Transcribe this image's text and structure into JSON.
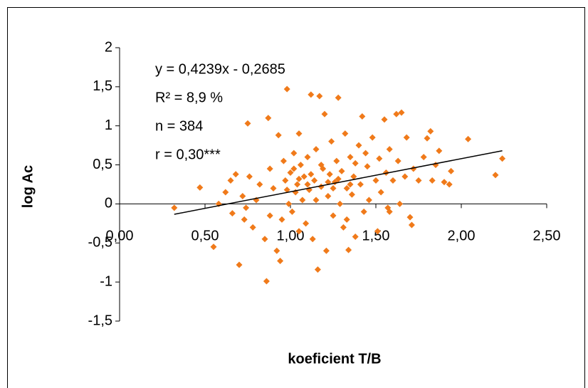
{
  "chart_data": {
    "type": "scatter",
    "x_label": "koeficient T/B",
    "y_label": "log Ac",
    "annotations": [
      "y = 0,4239x - 0,2685",
      "R² = 8,9 %",
      "n = 384",
      "r = 0,30***"
    ],
    "color": "#f07a1a",
    "xlim": [
      0,
      2.5
    ],
    "ylim": [
      -1.5,
      2
    ],
    "xticks": [
      {
        "value": 0,
        "label": "0,00"
      },
      {
        "value": 0.5,
        "label": "0,50"
      },
      {
        "value": 1,
        "label": "1,00"
      },
      {
        "value": 1.5,
        "label": "1,50"
      },
      {
        "value": 2,
        "label": "2,00"
      },
      {
        "value": 2.5,
        "label": "2,50"
      }
    ],
    "yticks": [
      {
        "value": -1.5,
        "label": "-1,5"
      },
      -1,
      {
        "value": -0.5,
        "label": "-0,5"
      },
      0,
      {
        "value": 0.5,
        "label": "0,5"
      },
      1,
      {
        "value": 1.5,
        "label": "1,5"
      },
      2
    ],
    "trendline": {
      "slope": 0.4239,
      "intercept": -0.2685,
      "x": [
        0.32,
        2.24
      ]
    },
    "x": [
      0.32,
      0.47,
      0.55,
      0.62,
      0.65,
      0.68,
      0.7,
      0.72,
      0.73,
      0.75,
      0.76,
      0.78,
      0.8,
      0.82,
      0.85,
      0.86,
      0.87,
      0.88,
      0.9,
      0.92,
      0.93,
      0.95,
      0.96,
      0.97,
      0.98,
      0.99,
      1.0,
      1.01,
      1.02,
      1.03,
      1.04,
      1.05,
      1.06,
      1.07,
      1.08,
      1.09,
      1.1,
      1.11,
      1.12,
      1.13,
      1.14,
      1.15,
      1.16,
      1.17,
      1.18,
      1.19,
      1.2,
      1.21,
      1.22,
      1.23,
      1.24,
      1.25,
      1.26,
      1.27,
      1.28,
      1.29,
      1.3,
      1.31,
      1.32,
      1.33,
      1.34,
      1.35,
      1.36,
      1.37,
      1.38,
      1.4,
      1.41,
      1.42,
      1.43,
      1.45,
      1.46,
      1.48,
      1.5,
      1.51,
      1.52,
      1.53,
      1.55,
      1.56,
      1.57,
      1.58,
      1.6,
      1.62,
      1.63,
      1.64,
      1.65,
      1.67,
      1.68,
      1.7,
      1.71,
      1.72,
      1.75,
      1.78,
      1.8,
      1.82,
      1.83,
      1.85,
      1.87,
      1.9,
      1.93,
      1.94,
      2.04,
      2.2,
      2.24,
      0.58,
      0.66,
      0.74,
      0.88,
      0.94,
      1.05,
      1.15,
      1.25,
      1.33,
      1.44,
      1.58,
      1.05,
      1.12,
      1.18,
      1.22,
      1.28,
      1.1,
      0.98,
      1.35,
      1.02,
      1.38
    ],
    "y": [
      -0.05,
      0.21,
      -0.55,
      0.15,
      0.3,
      0.38,
      -0.78,
      0.1,
      -0.2,
      1.03,
      0.35,
      -0.3,
      0.05,
      0.25,
      -0.45,
      -0.99,
      1.1,
      0.45,
      0.2,
      -0.6,
      0.88,
      -0.2,
      0.55,
      0.3,
      1.47,
      0.0,
      0.4,
      -0.1,
      0.65,
      0.15,
      0.25,
      -0.35,
      0.5,
      0.05,
      0.35,
      -0.25,
      0.6,
      0.18,
      1.4,
      -0.45,
      0.3,
      0.7,
      -0.84,
      1.38,
      0.22,
      0.45,
      1.15,
      -0.6,
      0.1,
      0.38,
      0.8,
      -0.15,
      0.28,
      0.55,
      1.36,
      0.0,
      0.42,
      -0.3,
      0.9,
      0.2,
      -0.59,
      0.6,
      0.12,
      0.35,
      -0.42,
      0.75,
      0.25,
      1.12,
      -0.1,
      0.48,
      0.05,
      0.85,
      0.3,
      -0.35,
      0.58,
      0.15,
      1.08,
      0.4,
      -0.05,
      0.7,
      0.3,
      1.15,
      0.55,
      0.0,
      1.17,
      0.35,
      0.85,
      -0.17,
      -0.27,
      0.45,
      0.3,
      0.6,
      0.84,
      0.93,
      0.3,
      0.5,
      0.68,
      0.28,
      0.25,
      0.42,
      0.83,
      0.37,
      0.58,
      0.0,
      -0.12,
      -0.05,
      -0.15,
      -0.73,
      0.9,
      0.05,
      0.2,
      -0.2,
      0.65,
      -0.1,
      0.32,
      0.38,
      0.5,
      0.28,
      0.32,
      0.25,
      0.18,
      0.25,
      0.45,
      0.52
    ]
  }
}
